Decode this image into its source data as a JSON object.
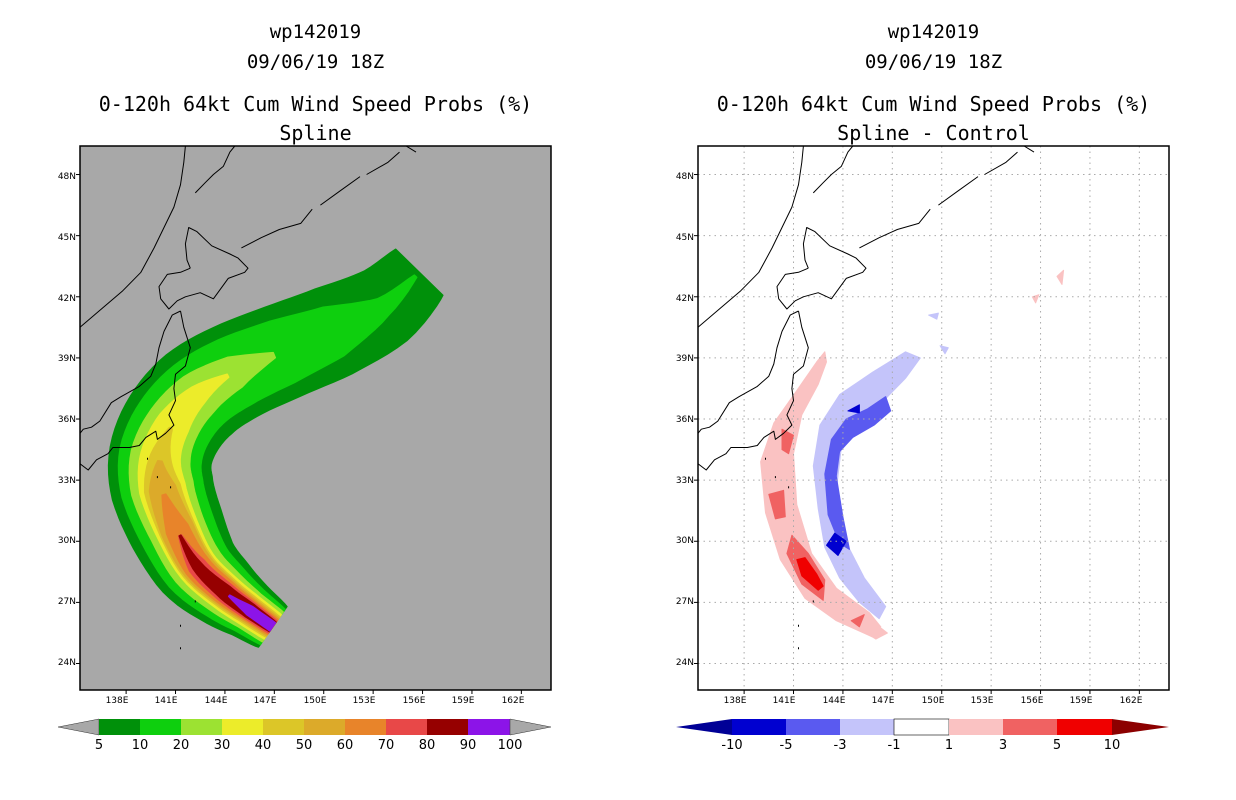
{
  "chart_data": [
    {
      "type": "heatmap",
      "panel": "left",
      "title_lines": [
        "wp142019",
        "09/06/19 18Z",
        "0-120h 64kt Cum Wind Speed Probs (%)",
        "Spline"
      ],
      "x_ticks": [
        "138E",
        "141E",
        "144E",
        "147E",
        "150E",
        "153E",
        "156E",
        "159E",
        "162E"
      ],
      "y_ticks": [
        "48N",
        "45N",
        "42N",
        "39N",
        "36N",
        "33N",
        "30N",
        "27N",
        "24N"
      ],
      "x_tick_values": [
        138,
        141,
        144,
        147,
        150,
        153,
        156,
        159,
        162
      ],
      "y_tick_values": [
        48,
        45,
        42,
        39,
        36,
        33,
        30,
        27,
        24
      ],
      "lon_range": [
        135.2,
        163.8
      ],
      "lat_range": [
        22.7,
        49.4
      ],
      "background": "#a8a8a8",
      "colorbar": {
        "labels": [
          "5",
          "10",
          "20",
          "30",
          "40",
          "50",
          "60",
          "70",
          "80",
          "90",
          "100"
        ],
        "colors": [
          "#00900a",
          "#0ecf0e",
          "#9ce232",
          "#ecec2a",
          "#dcc628",
          "#dcaa2a",
          "#e8842a",
          "#e84848",
          "#960000",
          "#8c14e8"
        ],
        "end_colors": [
          "#a8a8a8",
          "#a8a8a8"
        ]
      },
      "track": [
        [
          146.9,
          25.8
        ],
        [
          145.5,
          26.6
        ],
        [
          144.0,
          27.5
        ],
        [
          142.3,
          28.8
        ],
        [
          141.1,
          30.6
        ],
        [
          140.2,
          32.6
        ],
        [
          140.1,
          34.2
        ],
        [
          140.9,
          35.8
        ],
        [
          142.4,
          37.2
        ],
        [
          144.6,
          38.3
        ],
        [
          147.5,
          39.3
        ],
        [
          150.6,
          40.3
        ],
        [
          153.6,
          41.5
        ],
        [
          155.8,
          43.2
        ]
      ],
      "layers": [
        {
          "level": "5",
          "color": "#00900a",
          "widths": [
            1.5,
            1.8,
            2.2,
            2.6,
            2.9,
            3.1,
            3.1,
            3.1,
            3.1,
            3.0,
            2.9,
            2.8,
            2.5,
            2.0
          ]
        },
        {
          "level": "10",
          "color": "#0ecf0e",
          "widths": [
            1.3,
            1.5,
            1.8,
            2.1,
            2.3,
            2.5,
            2.5,
            2.4,
            2.3,
            2.2,
            2.0,
            1.6,
            0.6,
            0
          ]
        },
        {
          "level": "20",
          "color": "#9ce232",
          "widths": [
            1.1,
            1.2,
            1.4,
            1.6,
            1.7,
            1.9,
            1.8,
            1.6,
            1.4,
            1.0,
            0,
            0,
            0,
            0
          ]
        },
        {
          "level": "30",
          "color": "#ecec2a",
          "widths": [
            0.9,
            1.0,
            1.1,
            1.2,
            1.3,
            1.4,
            1.2,
            1.0,
            0.6,
            0,
            0,
            0,
            0,
            0
          ]
        },
        {
          "level": "40",
          "color": "#dcc628",
          "widths": [
            0.75,
            0.85,
            0.95,
            1.05,
            1.1,
            1.1,
            0.6,
            0,
            0,
            0,
            0,
            0,
            0,
            0
          ]
        },
        {
          "level": "50",
          "color": "#dcaa2a",
          "widths": [
            0.65,
            0.75,
            0.85,
            0.95,
            1.0,
            0.8,
            0,
            0,
            0,
            0,
            0,
            0,
            0,
            0
          ]
        },
        {
          "level": "60",
          "color": "#e8842a",
          "widths": [
            0.55,
            0.65,
            0.75,
            0.8,
            0.7,
            0,
            0,
            0,
            0,
            0,
            0,
            0,
            0,
            0
          ]
        },
        {
          "level": "70",
          "color": "#e84848",
          "widths": [
            0.45,
            0.55,
            0.6,
            0.55,
            0,
            0,
            0,
            0,
            0,
            0,
            0,
            0,
            0,
            0
          ]
        },
        {
          "level": "80",
          "color": "#960000",
          "widths": [
            0.35,
            0.45,
            0.45,
            0.3,
            0,
            0,
            0,
            0,
            0,
            0,
            0,
            0,
            0,
            0
          ]
        },
        {
          "level": "90",
          "color": "#8c14e8",
          "widths": [
            0.3,
            0.3,
            0,
            0,
            0,
            0,
            0,
            0,
            0,
            0,
            0,
            0,
            0,
            0
          ]
        }
      ]
    },
    {
      "type": "heatmap",
      "panel": "right",
      "title_lines": [
        "wp142019",
        "09/06/19 18Z",
        "0-120h 64kt Cum Wind Speed Probs (%)",
        "Spline - Control"
      ],
      "x_ticks": [
        "138E",
        "141E",
        "144E",
        "147E",
        "150E",
        "153E",
        "156E",
        "159E",
        "162E"
      ],
      "y_ticks": [
        "48N",
        "45N",
        "42N",
        "39N",
        "36N",
        "33N",
        "30N",
        "27N",
        "24N"
      ],
      "x_tick_values": [
        138,
        141,
        144,
        147,
        150,
        153,
        156,
        159,
        162
      ],
      "y_tick_values": [
        48,
        45,
        42,
        39,
        36,
        33,
        30,
        27,
        24
      ],
      "lon_range": [
        135.2,
        163.8
      ],
      "lat_range": [
        22.7,
        49.4
      ],
      "background": "#ffffff",
      "colorbar": {
        "labels": [
          "-10",
          "-5",
          "-3",
          "-1",
          "1",
          "3",
          "5",
          "10"
        ],
        "colors": [
          "#0000d0",
          "#5a5af0",
          "#c4c4fa",
          "#ffffff",
          "#fac2c2",
          "#f06262",
          "#f00000"
        ],
        "end_colors": [
          "#000096",
          "#8c0000"
        ]
      },
      "blobs": [
        {
          "color": "#fac2c2",
          "pts": [
            [
              145.8,
              25.3
            ],
            [
              143.6,
              26.1
            ],
            [
              141.7,
              27.2
            ],
            [
              140.2,
              29.1
            ],
            [
              139.3,
              31.4
            ],
            [
              139.0,
              33.9
            ],
            [
              139.8,
              35.8
            ],
            [
              141.2,
              37.4
            ],
            [
              142.4,
              38.8
            ],
            [
              142.9,
              39.3
            ],
            [
              143.0,
              38.8
            ],
            [
              142.5,
              37.7
            ],
            [
              141.5,
              36.2
            ],
            [
              141.0,
              34.3
            ],
            [
              141.2,
              31.8
            ],
            [
              142.1,
              29.4
            ],
            [
              143.6,
              27.7
            ],
            [
              145.6,
              26.5
            ],
            [
              146.3,
              25.8
            ]
          ]
        },
        {
          "color": "#f06262",
          "pts": [
            [
              142.8,
              27.1
            ],
            [
              141.5,
              27.9
            ],
            [
              140.6,
              29.4
            ],
            [
              140.9,
              30.3
            ],
            [
              141.9,
              29.4
            ],
            [
              142.9,
              28.1
            ]
          ]
        },
        {
          "color": "#f06262",
          "pts": [
            [
              139.9,
              31.1
            ],
            [
              139.5,
              32.3
            ],
            [
              140.4,
              32.5
            ],
            [
              140.5,
              31.2
            ]
          ]
        },
        {
          "color": "#f06262",
          "pts": [
            [
              140.3,
              34.5
            ],
            [
              140.3,
              35.5
            ],
            [
              141.0,
              35.2
            ],
            [
              140.7,
              34.3
            ]
          ]
        },
        {
          "color": "#f06262",
          "pts": [
            [
              145.0,
              25.8
            ],
            [
              144.5,
              26.1
            ],
            [
              145.3,
              26.4
            ]
          ]
        },
        {
          "color": "#f00000",
          "pts": [
            [
              142.5,
              27.6
            ],
            [
              141.5,
              28.3
            ],
            [
              141.2,
              29.1
            ],
            [
              141.7,
              29.2
            ],
            [
              142.4,
              28.4
            ],
            [
              142.8,
              27.8
            ]
          ]
        },
        {
          "color": "#fac2c2",
          "pts": [
            [
              155.7,
              41.7
            ],
            [
              155.5,
              42.0
            ],
            [
              155.9,
              42.1
            ]
          ]
        },
        {
          "color": "#fac2c2",
          "pts": [
            [
              157.3,
              42.6
            ],
            [
              157.0,
              43.0
            ],
            [
              157.4,
              43.3
            ]
          ]
        },
        {
          "color": "#fac2c2",
          "pts": [
            [
              146.0,
              25.2
            ],
            [
              145.2,
              25.6
            ],
            [
              145.9,
              26.0
            ],
            [
              146.7,
              25.5
            ]
          ]
        },
        {
          "color": "#c4c4fa",
          "pts": [
            [
              146.2,
              26.2
            ],
            [
              145.0,
              27.0
            ],
            [
              143.8,
              28.2
            ],
            [
              142.9,
              29.7
            ],
            [
              142.5,
              31.6
            ],
            [
              142.2,
              33.7
            ],
            [
              142.6,
              35.7
            ],
            [
              143.8,
              37.2
            ],
            [
              145.8,
              38.3
            ],
            [
              147.8,
              39.3
            ],
            [
              148.7,
              39.0
            ],
            [
              147.8,
              38.0
            ],
            [
              146.6,
              37.0
            ],
            [
              146.3,
              36.2
            ],
            [
              144.9,
              35.6
            ],
            [
              143.9,
              34.6
            ],
            [
              143.6,
              32.5
            ],
            [
              143.9,
              30.4
            ],
            [
              145.3,
              28.2
            ],
            [
              146.6,
              26.8
            ]
          ]
        },
        {
          "color": "#c4c4fa",
          "pts": [
            [
              150.2,
              39.2
            ],
            [
              149.9,
              39.6
            ],
            [
              150.4,
              39.5
            ]
          ]
        },
        {
          "color": "#c4c4fa",
          "pts": [
            [
              149.7,
              40.9
            ],
            [
              149.2,
              41.1
            ],
            [
              149.8,
              41.2
            ]
          ]
        },
        {
          "color": "#5a5af0",
          "pts": [
            [
              145.5,
              36.5
            ],
            [
              144.2,
              36.0
            ],
            [
              143.3,
              35.0
            ],
            [
              142.9,
              33.3
            ],
            [
              143.1,
              31.3
            ],
            [
              143.8,
              29.9
            ],
            [
              144.4,
              29.6
            ],
            [
              144.0,
              31.2
            ],
            [
              143.6,
              33.2
            ],
            [
              143.8,
              34.4
            ],
            [
              144.6,
              35.1
            ],
            [
              145.9,
              35.7
            ],
            [
              146.9,
              36.4
            ],
            [
              146.6,
              37.1
            ]
          ]
        },
        {
          "color": "#0000d0",
          "pts": [
            [
              143.5,
              30.4
            ],
            [
              143.0,
              29.8
            ],
            [
              143.7,
              29.3
            ],
            [
              144.2,
              30.0
            ]
          ]
        },
        {
          "color": "#0000d0",
          "pts": [
            [
              145.0,
              36.3
            ],
            [
              144.3,
              36.4
            ],
            [
              145.0,
              36.7
            ]
          ]
        }
      ]
    }
  ],
  "coast_lines": [
    [
      [
        135.2,
        40.5
      ],
      [
        136.5,
        41.4
      ],
      [
        137.8,
        42.3
      ],
      [
        138.9,
        43.2
      ],
      [
        139.7,
        44.4
      ],
      [
        140.3,
        45.4
      ],
      [
        140.9,
        46.4
      ],
      [
        141.3,
        47.5
      ],
      [
        141.5,
        48.6
      ],
      [
        141.6,
        49.4
      ]
    ],
    [
      [
        141.9,
        43.4
      ],
      [
        141.3,
        43.2
      ],
      [
        140.5,
        43.1
      ],
      [
        140.0,
        42.5
      ],
      [
        140.1,
        41.9
      ],
      [
        140.6,
        41.4
      ],
      [
        141.1,
        41.8
      ],
      [
        141.6,
        42.0
      ],
      [
        142.5,
        42.2
      ],
      [
        143.3,
        41.9
      ],
      [
        144.2,
        42.9
      ],
      [
        145.2,
        43.2
      ],
      [
        145.4,
        43.4
      ],
      [
        144.8,
        43.9
      ],
      [
        144.3,
        44.1
      ],
      [
        143.2,
        44.5
      ],
      [
        142.3,
        45.2
      ],
      [
        141.8,
        45.4
      ],
      [
        141.6,
        44.6
      ],
      [
        141.7,
        43.8
      ],
      [
        141.9,
        43.4
      ]
    ],
    [
      [
        141.3,
        41.3
      ],
      [
        140.8,
        41.1
      ],
      [
        140.3,
        40.3
      ],
      [
        140.0,
        39.5
      ],
      [
        139.8,
        38.7
      ],
      [
        139.5,
        38.1
      ],
      [
        138.8,
        37.6
      ],
      [
        137.7,
        37.1
      ],
      [
        137.1,
        36.8
      ],
      [
        136.4,
        35.9
      ],
      [
        135.9,
        35.6
      ],
      [
        135.4,
        35.5
      ],
      [
        135.2,
        35.3
      ]
    ],
    [
      [
        141.3,
        41.3
      ],
      [
        141.5,
        40.5
      ],
      [
        141.9,
        39.5
      ],
      [
        141.6,
        38.6
      ],
      [
        141.0,
        38.2
      ],
      [
        140.9,
        37.5
      ],
      [
        141.0,
        36.9
      ],
      [
        140.6,
        36.2
      ],
      [
        140.9,
        35.7
      ],
      [
        140.4,
        35.3
      ],
      [
        139.9,
        35.0
      ],
      [
        139.8,
        35.4
      ],
      [
        139.2,
        35.1
      ],
      [
        138.8,
        34.7
      ],
      [
        138.2,
        34.6
      ],
      [
        137.2,
        34.6
      ],
      [
        136.9,
        34.3
      ],
      [
        136.2,
        34.0
      ],
      [
        135.7,
        33.5
      ],
      [
        135.2,
        33.8
      ]
    ],
    [
      [
        145.0,
        44.4
      ],
      [
        146.2,
        44.9
      ],
      [
        147.3,
        45.3
      ],
      [
        148.6,
        45.6
      ],
      [
        149.3,
        46.3
      ]
    ],
    [
      [
        149.8,
        46.5
      ],
      [
        151.0,
        47.2
      ],
      [
        152.2,
        47.9
      ]
    ],
    [
      [
        152.6,
        48.0
      ],
      [
        153.9,
        48.6
      ],
      [
        154.6,
        49.1
      ]
    ],
    [
      [
        155.0,
        49.4
      ],
      [
        155.6,
        49.1
      ]
    ],
    [
      [
        142.2,
        47.1
      ],
      [
        142.8,
        47.6
      ],
      [
        143.3,
        48.0
      ],
      [
        143.9,
        48.4
      ],
      [
        144.3,
        49.1
      ],
      [
        144.6,
        49.4
      ]
    ],
    [
      [
        142.2,
        27.1
      ],
      [
        142.2,
        27.0
      ]
    ],
    [
      [
        141.3,
        25.9
      ],
      [
        141.3,
        25.8
      ]
    ],
    [
      [
        141.3,
        24.8
      ],
      [
        141.3,
        24.7
      ]
    ],
    [
      [
        140.7,
        32.7
      ],
      [
        140.7,
        32.6
      ]
    ],
    [
      [
        139.3,
        34.1
      ],
      [
        139.3,
        34.0
      ]
    ],
    [
      [
        139.9,
        33.2
      ],
      [
        139.9,
        33.1
      ]
    ]
  ]
}
